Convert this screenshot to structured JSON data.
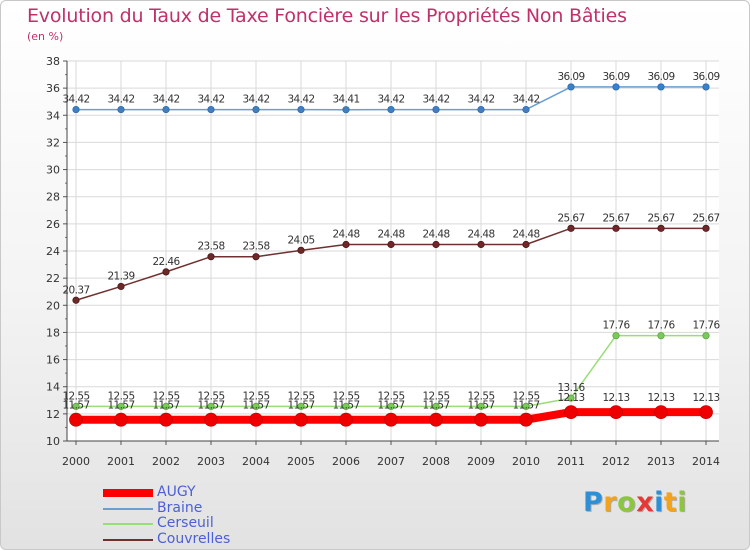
{
  "chart_data": {
    "type": "line",
    "title": "Evolution du Taux de Taxe Foncière sur les Propriétés Non Bâties",
    "ylabel": "(en %)",
    "xlabel": "",
    "ylim": [
      10,
      38
    ],
    "yticks": [
      10,
      12,
      14,
      16,
      18,
      20,
      22,
      24,
      26,
      28,
      30,
      32,
      34,
      36,
      38
    ],
    "grid": true,
    "legend_position": "bottom-left",
    "categories": [
      "2000",
      "2001",
      "2002",
      "2003",
      "2004",
      "2005",
      "2006",
      "2007",
      "2008",
      "2009",
      "2010",
      "2011",
      "2012",
      "2013",
      "2014"
    ],
    "series": [
      {
        "name": "AUGY",
        "color": "#ff0000",
        "values": [
          11.57,
          11.57,
          11.57,
          11.57,
          11.57,
          11.57,
          11.57,
          11.57,
          11.57,
          11.57,
          11.57,
          12.13,
          12.13,
          12.13,
          12.13
        ],
        "labels": [
          "11.57",
          "11.57",
          "11.57",
          "11.57",
          "11.57",
          "11.57",
          "11.57",
          "11.57",
          "11.57",
          "11.57",
          "11.57",
          "12.13",
          "12.13",
          "12.13",
          "12.13"
        ]
      },
      {
        "name": "Braine",
        "color": "#6a9fd4",
        "values": [
          34.42,
          34.42,
          34.42,
          34.42,
          34.42,
          34.42,
          34.41,
          34.42,
          34.42,
          34.42,
          34.42,
          36.09,
          36.09,
          36.09,
          36.09
        ],
        "labels": [
          "34.42",
          "34.42",
          "34.42",
          "34.42",
          "34.42",
          "34.42",
          "34.41",
          "34.42",
          "34.42",
          "34.42",
          "34.42",
          "36.09",
          "36.09",
          "36.09",
          "36.09"
        ]
      },
      {
        "name": "Cerseuil",
        "color": "#99dd77",
        "values": [
          12.55,
          12.55,
          12.55,
          12.55,
          12.55,
          12.55,
          12.55,
          12.55,
          12.55,
          12.55,
          12.55,
          13.16,
          17.76,
          17.76,
          17.76
        ],
        "labels": [
          "12.55",
          "12.55",
          "12.55",
          "12.55",
          "12.55",
          "12.55",
          "12.55",
          "12.55",
          "12.55",
          "12.55",
          "12.55",
          "13.16",
          "17.76",
          "17.76",
          "17.76"
        ]
      },
      {
        "name": "Couvrelles",
        "color": "#703030",
        "values": [
          20.37,
          21.39,
          22.46,
          23.58,
          23.58,
          24.05,
          24.48,
          24.48,
          24.48,
          24.48,
          24.48,
          25.67,
          25.67,
          25.67,
          25.67
        ],
        "labels": [
          "20.37",
          "21.39",
          "22.46",
          "23.58",
          "23.58",
          "24.05",
          "24.48",
          "24.48",
          "24.48",
          "24.48",
          "24.48",
          "25.67",
          "25.67",
          "25.67",
          "25.67"
        ]
      }
    ]
  },
  "brand": {
    "letters": [
      {
        "char": "P",
        "color": "#2e8fd6"
      },
      {
        "char": "r",
        "color": "#f5a21b"
      },
      {
        "char": "o",
        "color": "#8cc63f"
      },
      {
        "char": "x",
        "color": "#e53935"
      },
      {
        "char": "i",
        "color": "#2e8fd6"
      },
      {
        "char": "t",
        "color": "#f5a21b"
      },
      {
        "char": "i",
        "color": "#8cc63f"
      }
    ]
  }
}
